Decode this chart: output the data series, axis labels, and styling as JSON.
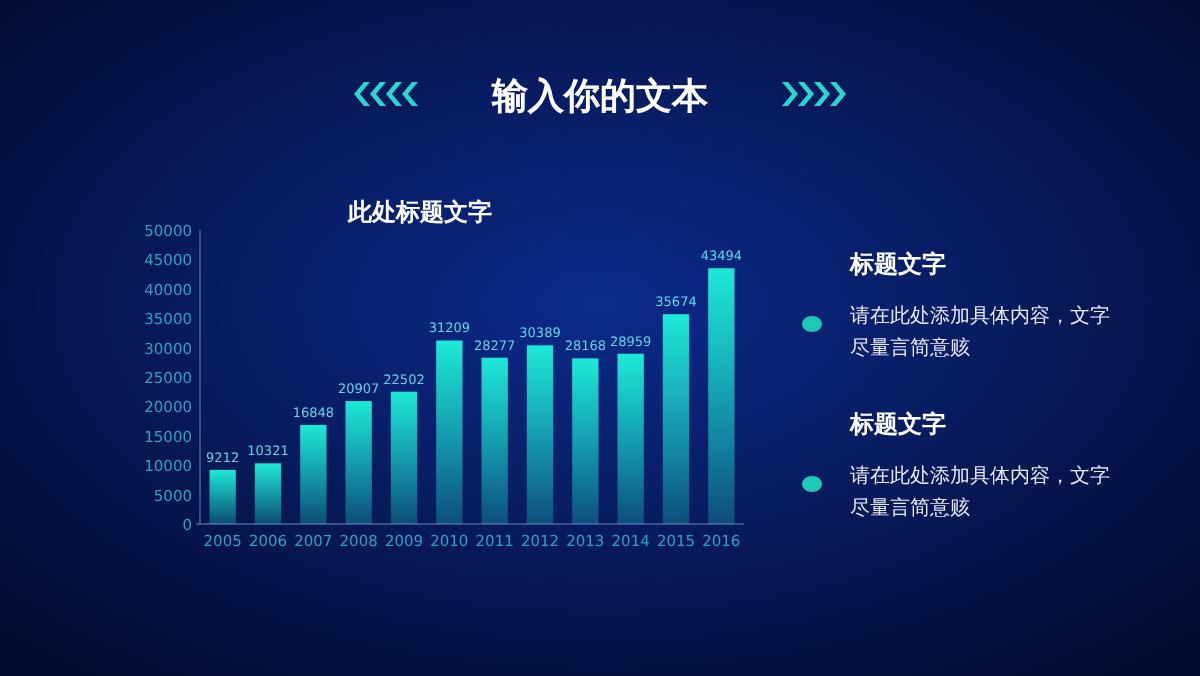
{
  "chart_data": [
    {
      "type": "bar",
      "title": "此处标题文字",
      "categories": [
        "2005",
        "2006",
        "2007",
        "2008",
        "2009",
        "2010",
        "2011",
        "2012",
        "2013",
        "2014",
        "2015",
        "2016"
      ],
      "values": [
        9212,
        10321,
        16848,
        20907,
        22502,
        31209,
        28277,
        30389,
        28168,
        28959,
        35674,
        43494
      ],
      "color": "#1de9d6",
      "ylim": [
        0,
        50000
      ],
      "yticks": [
        0,
        5000,
        10000,
        15000,
        20000,
        25000,
        30000,
        35000,
        40000,
        45000,
        50000
      ],
      "grid": false,
      "data_labels": true
    },
    {
      "type": "other",
      "title": "输入你的文本",
      "annotations": [
        "标题文字",
        "请在此处添加具体内容，文字尽量言简意赅",
        "标题文字",
        "请在此处添加具体内容，文字尽量言简意赅"
      ]
    }
  ]
}
